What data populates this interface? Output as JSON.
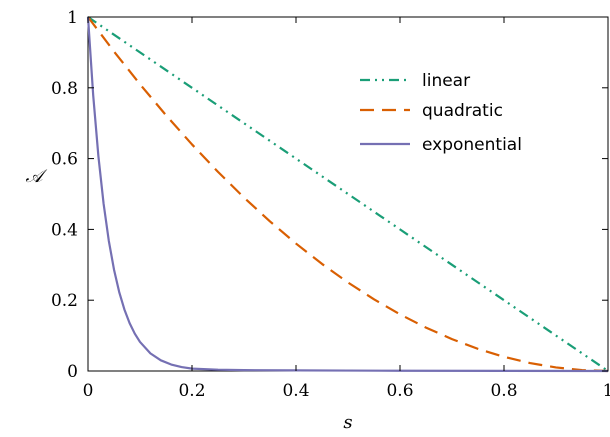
{
  "chart_data": {
    "type": "line",
    "xlabel": "s",
    "ylabel": "𝒜",
    "xlim": [
      0,
      1
    ],
    "ylim": [
      0,
      1
    ],
    "xticks": [
      0,
      0.2,
      0.4,
      0.6,
      0.8,
      1
    ],
    "xtick_labels": [
      "0",
      "0.2",
      "0.4",
      "0.6",
      "0.8",
      "1"
    ],
    "yticks": [
      0,
      0.2,
      0.4,
      0.6,
      0.8,
      1
    ],
    "ytick_labels": [
      "0",
      "0.2",
      "0.4",
      "0.6",
      "0.8",
      "1"
    ],
    "grid": false,
    "legend_position": "top-right",
    "series": [
      {
        "name": "linear",
        "color": "#1a9e77",
        "dash": "dash-dot-dot",
        "x": [
          0,
          0.1,
          0.2,
          0.3,
          0.4,
          0.5,
          0.6,
          0.7,
          0.8,
          0.9,
          1.0
        ],
        "y": [
          1,
          0.9,
          0.8,
          0.7,
          0.6,
          0.5,
          0.4,
          0.3,
          0.2,
          0.1,
          0
        ]
      },
      {
        "name": "quadratic",
        "color": "#d95f02",
        "dash": "dashed",
        "x": [
          0,
          0.05,
          0.1,
          0.15,
          0.2,
          0.25,
          0.3,
          0.35,
          0.4,
          0.45,
          0.5,
          0.55,
          0.6,
          0.65,
          0.7,
          0.75,
          0.8,
          0.85,
          0.9,
          0.95,
          1.0
        ],
        "y": [
          1,
          0.9025,
          0.81,
          0.7225,
          0.64,
          0.5625,
          0.49,
          0.4225,
          0.36,
          0.3025,
          0.25,
          0.2025,
          0.16,
          0.1225,
          0.09,
          0.0625,
          0.04,
          0.0225,
          0.01,
          0.0025,
          0
        ]
      },
      {
        "name": "exponential",
        "color": "#7570b3",
        "dash": "solid",
        "x": [
          0,
          0.01,
          0.02,
          0.03,
          0.04,
          0.05,
          0.06,
          0.07,
          0.08,
          0.09,
          0.1,
          0.12,
          0.14,
          0.16,
          0.18,
          0.2,
          0.25,
          0.3,
          0.4,
          0.5,
          0.6,
          0.8,
          1.0
        ],
        "y": [
          1,
          0.7788,
          0.6065,
          0.4724,
          0.3679,
          0.2865,
          0.2231,
          0.1738,
          0.1353,
          0.1054,
          0.0821,
          0.0498,
          0.0302,
          0.0183,
          0.0111,
          0.0067,
          0.0037,
          0.0025,
          0.0018,
          0.0012,
          0.0008,
          0.0003,
          0
        ]
      }
    ]
  }
}
